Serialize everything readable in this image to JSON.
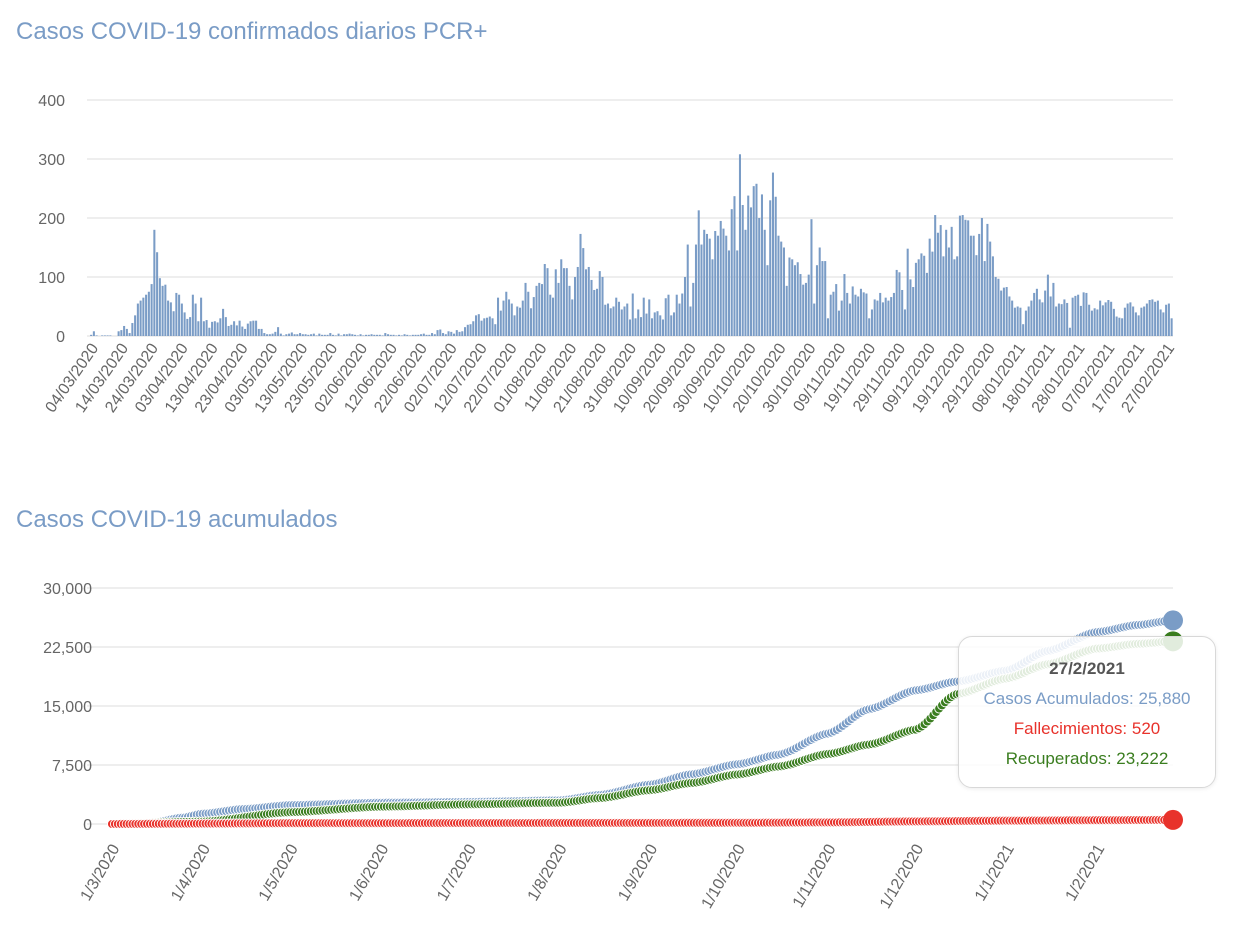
{
  "colors": {
    "blue": "#7a9cc6",
    "red": "#e8322b",
    "green": "#3a7d1f",
    "grid": "#dddddd",
    "tick": "#666666"
  },
  "chart_data": [
    {
      "type": "bar",
      "title": "Casos COVID-19 confirmados diarios PCR+",
      "ylim": [
        0,
        400
      ],
      "yticks": [
        "400",
        "300",
        "200",
        "100",
        "0"
      ],
      "x_tick_labels": [
        "04/03/2020",
        "14/03/2020",
        "24/03/2020",
        "03/04/2020",
        "13/04/2020",
        "23/04/2020",
        "03/05/2020",
        "13/05/2020",
        "23/05/2020",
        "02/06/2020",
        "12/06/2020",
        "22/06/2020",
        "02/07/2020",
        "12/07/2020",
        "22/07/2020",
        "01/08/2020",
        "11/08/2020",
        "21/08/2020",
        "31/08/2020",
        "10/09/2020",
        "20/09/2020",
        "30/09/2020",
        "10/10/2020",
        "20/10/2020",
        "30/10/2020",
        "09/11/2020",
        "19/11/2020",
        "29/11/2020",
        "09/12/2020",
        "19/12/2020",
        "29/12/2020",
        "08/01/2021",
        "18/01/2021",
        "28/01/2021",
        "07/02/2021",
        "17/02/2021",
        "27/02/2021"
      ],
      "grid": true,
      "daily_values": [
        0,
        2,
        8,
        1,
        0,
        1,
        1,
        1,
        1,
        0,
        0,
        8,
        10,
        17,
        12,
        5,
        22,
        35,
        55,
        60,
        65,
        70,
        75,
        88,
        180,
        142,
        98,
        85,
        87,
        60,
        57,
        42,
        73,
        70,
        55,
        40,
        29,
        32,
        70,
        55,
        25,
        65,
        25,
        27,
        14,
        24,
        25,
        23,
        30,
        46,
        32,
        17,
        19,
        25,
        18,
        26,
        16,
        12,
        21,
        25,
        26,
        26,
        12,
        12,
        5,
        3,
        3,
        4,
        7,
        15,
        4,
        1,
        3,
        4,
        6,
        3,
        3,
        5,
        3,
        3,
        2,
        3,
        4,
        1,
        4,
        2,
        2,
        2,
        5,
        2,
        1,
        4,
        1,
        3,
        3,
        4,
        3,
        2,
        1,
        3,
        1,
        2,
        2,
        3,
        2,
        2,
        2,
        1,
        5,
        3,
        2,
        2,
        1,
        2,
        1,
        3,
        2,
        1,
        2,
        2,
        2,
        3,
        4,
        2,
        2,
        5,
        3,
        10,
        11,
        5,
        3,
        8,
        7,
        4,
        10,
        7,
        8,
        15,
        19,
        20,
        25,
        35,
        37,
        26,
        30,
        31,
        33,
        30,
        20,
        65,
        43,
        60,
        75,
        62,
        55,
        35,
        50,
        48,
        60,
        90,
        75,
        47,
        66,
        85,
        90,
        88,
        122,
        115,
        70,
        65,
        113,
        90,
        130,
        115,
        115,
        85,
        62,
        100,
        117,
        173,
        149,
        113,
        117,
        95,
        78,
        80,
        110,
        100,
        53,
        55,
        47,
        50,
        65,
        58,
        45,
        50,
        55,
        28,
        72,
        30,
        45,
        32,
        65,
        38,
        62,
        30,
        40,
        42,
        35,
        28,
        64,
        70,
        35,
        40,
        70,
        55,
        72,
        100,
        155,
        50,
        90,
        155,
        213,
        155,
        180,
        173,
        165,
        130,
        178,
        170,
        195,
        182,
        170,
        145,
        215,
        237,
        145,
        308,
        222,
        180,
        238,
        218,
        254,
        258,
        200,
        240,
        180,
        120,
        230,
        277,
        236,
        170,
        160,
        150,
        85,
        133,
        130,
        120,
        125,
        105,
        87,
        90,
        104,
        198,
        55,
        120,
        150,
        127,
        127,
        30,
        70,
        75,
        88,
        43,
        60,
        105,
        73,
        55,
        84,
        70,
        67,
        80,
        74,
        72,
        30,
        45,
        62,
        60,
        73,
        57,
        65,
        60,
        66,
        73,
        112,
        108,
        78,
        45,
        148,
        96,
        83,
        124,
        130,
        140,
        136,
        107,
        165,
        143,
        205,
        175,
        188,
        135,
        180,
        150,
        185,
        130,
        135,
        204,
        205,
        197,
        196,
        170,
        170,
        137,
        173,
        200,
        127,
        190,
        160,
        135,
        100,
        97,
        77,
        82,
        83,
        67,
        60,
        48,
        50,
        48,
        20,
        43,
        50,
        60,
        73,
        80,
        62,
        57,
        77,
        104,
        67,
        90,
        50,
        55,
        54,
        62,
        56,
        14,
        65,
        68,
        70,
        51,
        74,
        73,
        53,
        43,
        47,
        45,
        60,
        52,
        57,
        61,
        58,
        46,
        33,
        31,
        30,
        48,
        55,
        57,
        50,
        40,
        35,
        48,
        50,
        55,
        61,
        62,
        58,
        60,
        45,
        40,
        53,
        55,
        30
      ]
    },
    {
      "type": "line",
      "title": "Casos COVID-19 acumulados",
      "ylim": [
        0,
        30000
      ],
      "yticks": [
        "30,000",
        "22,500",
        "15,000",
        "7,500",
        "0"
      ],
      "x_tick_labels": [
        "1/3/2020",
        "1/4/2020",
        "1/5/2020",
        "1/6/2020",
        "1/7/2020",
        "1/8/2020",
        "1/9/2020",
        "1/10/2020",
        "1/11/2020",
        "1/12/2020",
        "1/1/2021",
        "1/2/2021"
      ],
      "x_start": "1/3/2020",
      "x_end": "27/2/2021",
      "grid": true,
      "series": [
        {
          "name": "Casos Acumulados",
          "color": "#7a9cc6",
          "points": [
            [
              "1/3/2020",
              0
            ],
            [
              "15/3/2020",
              150
            ],
            [
              "25/3/2020",
              800
            ],
            [
              "1/4/2020",
              1300
            ],
            [
              "15/4/2020",
              1900
            ],
            [
              "1/5/2020",
              2400
            ],
            [
              "1/6/2020",
              2700
            ],
            [
              "1/7/2020",
              2800
            ],
            [
              "1/8/2020",
              3000
            ],
            [
              "15/8/2020",
              3700
            ],
            [
              "1/9/2020",
              5000
            ],
            [
              "15/9/2020",
              6300
            ],
            [
              "1/10/2020",
              7600
            ],
            [
              "15/10/2020",
              8800
            ],
            [
              "1/11/2020",
              11500
            ],
            [
              "15/11/2020",
              14600
            ],
            [
              "1/12/2020",
              17000
            ],
            [
              "15/12/2020",
              18100
            ],
            [
              "1/1/2021",
              19500
            ],
            [
              "15/1/2021",
              22000
            ],
            [
              "1/2/2021",
              24400
            ],
            [
              "15/2/2021",
              25300
            ],
            [
              "27/2/2021",
              25880
            ]
          ]
        },
        {
          "name": "Fallecimientos",
          "color": "#e8322b",
          "points": [
            [
              "1/3/2020",
              0
            ],
            [
              "1/4/2020",
              50
            ],
            [
              "1/5/2020",
              100
            ],
            [
              "1/8/2020",
              130
            ],
            [
              "1/10/2020",
              150
            ],
            [
              "1/11/2020",
              200
            ],
            [
              "1/12/2020",
              330
            ],
            [
              "1/1/2021",
              420
            ],
            [
              "1/2/2021",
              480
            ],
            [
              "27/2/2021",
              520
            ]
          ]
        },
        {
          "name": "Recuperados",
          "color": "#3a7d1f",
          "points": [
            [
              "1/3/2020",
              0
            ],
            [
              "1/4/2020",
              300
            ],
            [
              "1/5/2020",
              1500
            ],
            [
              "1/6/2020",
              2200
            ],
            [
              "1/7/2020",
              2500
            ],
            [
              "1/8/2020",
              2700
            ],
            [
              "15/8/2020",
              3300
            ],
            [
              "1/9/2020",
              4300
            ],
            [
              "15/9/2020",
              5200
            ],
            [
              "1/10/2020",
              6300
            ],
            [
              "15/10/2020",
              7300
            ],
            [
              "1/11/2020",
              8900
            ],
            [
              "15/11/2020",
              10100
            ],
            [
              "1/12/2020",
              12000
            ],
            [
              "15/12/2020",
              16500
            ],
            [
              "1/1/2021",
              18500
            ],
            [
              "15/1/2021",
              20300
            ],
            [
              "1/2/2021",
              22300
            ],
            [
              "15/2/2021",
              22900
            ],
            [
              "27/2/2021",
              23222
            ]
          ]
        }
      ],
      "tooltip": {
        "date": "27/2/2021",
        "lines": [
          {
            "label": "Casos Acumulados: 25,880",
            "color": "#7a9cc6"
          },
          {
            "label": "Fallecimientos: 520",
            "color": "#e8322b"
          },
          {
            "label": "Recuperados: 23,222",
            "color": "#3a7d1f"
          }
        ]
      }
    }
  ]
}
